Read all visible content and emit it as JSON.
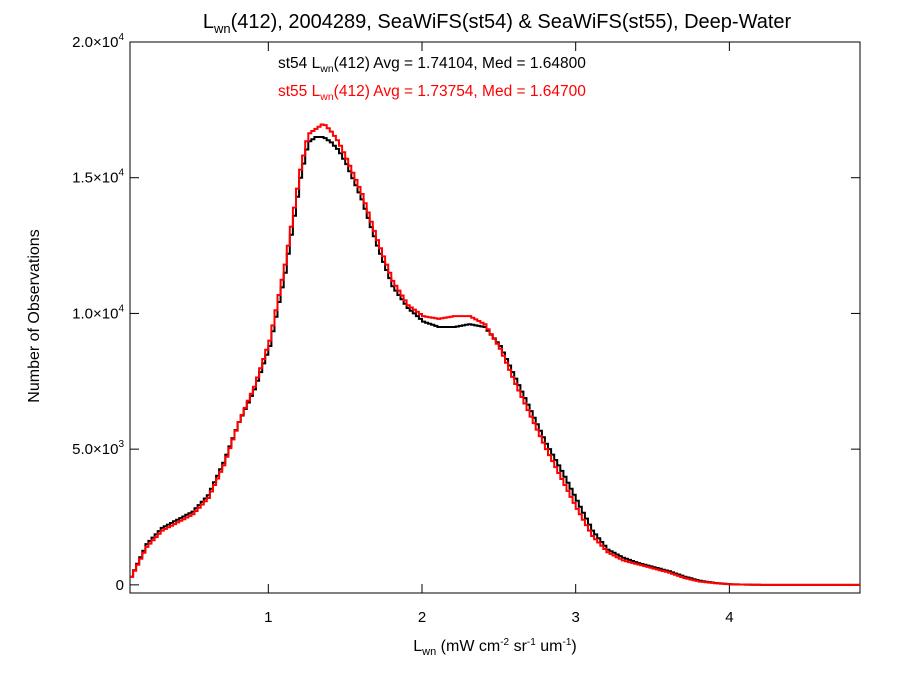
{
  "chart_data": {
    "type": "line",
    "title": {
      "main_prefix": "L",
      "main_sub": "wn",
      "main_rest": "(412), 2004289, SeaWiFS(st54) & SeaWiFS(st55), Deep-Water"
    },
    "xlabel": {
      "prefix": "L",
      "sub": "wn",
      "units": " (mW cm",
      "sup1": "-2",
      "mid": " sr",
      "sup2": "-1",
      "mid2": " um",
      "sup3": "-1",
      "close": ")"
    },
    "ylabel": "Number of Observations",
    "xlim": [
      0.1,
      4.85
    ],
    "ylim": [
      -300,
      20000
    ],
    "x_ticks": [
      {
        "value": 1,
        "label": "1"
      },
      {
        "value": 2,
        "label": "2"
      },
      {
        "value": 3,
        "label": "3"
      },
      {
        "value": 4,
        "label": "4"
      }
    ],
    "y_ticks": [
      {
        "value": 0,
        "mant": "0",
        "exp": ""
      },
      {
        "value": 5000,
        "mant": "5.0×10",
        "exp": "3"
      },
      {
        "value": 10000,
        "mant": "1.0×10",
        "exp": "4"
      },
      {
        "value": 15000,
        "mant": "1.5×10",
        "exp": "4"
      },
      {
        "value": 20000,
        "mant": "2.0×10",
        "exp": "4"
      }
    ],
    "series": [
      {
        "name": "st54",
        "color": "#000000",
        "annotation": {
          "pre": "st54 L",
          "sub": "wn",
          "post": "(412) Avg = 1.74104, Med = 1.64800"
        },
        "x": [
          0.1,
          0.2,
          0.3,
          0.4,
          0.5,
          0.6,
          0.7,
          0.8,
          0.9,
          1.0,
          1.1,
          1.2,
          1.25,
          1.3,
          1.35,
          1.4,
          1.45,
          1.5,
          1.6,
          1.7,
          1.8,
          1.9,
          2.0,
          2.1,
          2.2,
          2.3,
          2.4,
          2.5,
          2.6,
          2.7,
          2.8,
          2.9,
          3.0,
          3.1,
          3.2,
          3.3,
          3.4,
          3.5,
          3.6,
          3.7,
          3.8,
          3.9,
          4.0,
          4.2,
          4.5,
          4.85
        ],
        "y": [
          300,
          1500,
          2100,
          2400,
          2700,
          3300,
          4500,
          6000,
          7200,
          8800,
          11500,
          15000,
          16300,
          16500,
          16500,
          16300,
          16000,
          15500,
          14200,
          12500,
          11000,
          10200,
          9700,
          9500,
          9500,
          9600,
          9500,
          8800,
          7600,
          6400,
          5200,
          4200,
          3100,
          2000,
          1300,
          1000,
          800,
          650,
          500,
          300,
          150,
          70,
          20,
          0,
          0,
          0
        ]
      },
      {
        "name": "st55",
        "color": "#ff0000",
        "annotation": {
          "pre": "st55 L",
          "sub": "wn",
          "post": "(412) Avg = 1.73754, Med = 1.64700"
        },
        "x": [
          0.1,
          0.2,
          0.3,
          0.4,
          0.5,
          0.6,
          0.7,
          0.8,
          0.9,
          1.0,
          1.1,
          1.2,
          1.25,
          1.3,
          1.35,
          1.4,
          1.45,
          1.5,
          1.6,
          1.7,
          1.8,
          1.9,
          2.0,
          2.1,
          2.2,
          2.3,
          2.4,
          2.5,
          2.6,
          2.7,
          2.8,
          2.9,
          3.0,
          3.1,
          3.2,
          3.3,
          3.4,
          3.5,
          3.6,
          3.7,
          3.8,
          3.9,
          4.0,
          4.2,
          4.5,
          4.85
        ],
        "y": [
          300,
          1400,
          2000,
          2300,
          2600,
          3200,
          4400,
          6000,
          7300,
          9000,
          11800,
          15300,
          16600,
          16800,
          17000,
          16700,
          16300,
          15700,
          14400,
          12700,
          11200,
          10300,
          9900,
          9800,
          9900,
          9900,
          9600,
          8700,
          7400,
          6200,
          5000,
          3900,
          2800,
          1800,
          1200,
          900,
          750,
          600,
          450,
          250,
          120,
          60,
          20,
          0,
          0,
          0
        ]
      }
    ]
  }
}
